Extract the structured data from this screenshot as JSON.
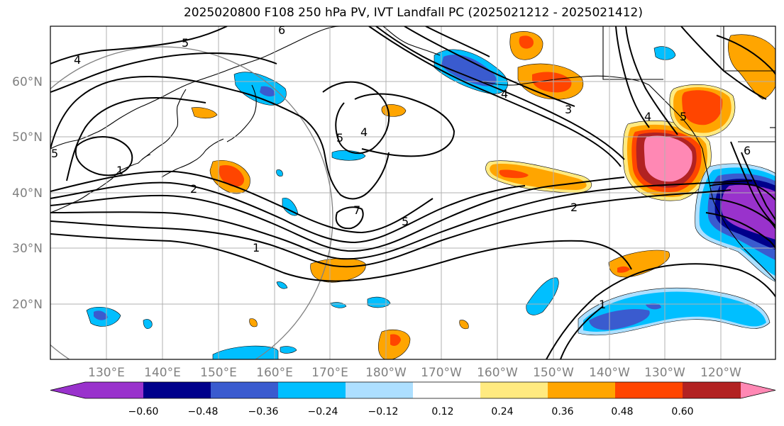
{
  "title": "2025020800 F108 250 hPa PV, IVT Landfall PC (2025021212 - 2025021412)",
  "lat_labels": [
    "60°N",
    "50°N",
    "40°N",
    "30°N",
    "20°N"
  ],
  "lon_labels": [
    "130°E",
    "140°E",
    "150°E",
    "160°E",
    "170°E",
    "180°W",
    "170°W",
    "160°W",
    "150°W",
    "140°W",
    "130°W",
    "120°W"
  ],
  "colorbar": {
    "ticks": [
      "−0.60",
      "−0.48",
      "−0.36",
      "−0.24",
      "−0.12",
      "0.12",
      "0.24",
      "0.36",
      "0.48",
      "0.60"
    ],
    "colors": [
      "#9932CC",
      "#00008B",
      "#3A5BCF",
      "#00BFFF",
      "#ADDFFF",
      "#FFFFFF",
      "#FFEA80",
      "#FFA500",
      "#FF4500",
      "#B22222",
      "#FF88B4"
    ]
  },
  "contour_labels": [
    "4",
    "5",
    "6",
    "5",
    "1",
    "2",
    "5",
    "4",
    "7",
    "5",
    "4",
    "3",
    "2",
    "1",
    "1",
    "4",
    "5",
    "6"
  ]
}
